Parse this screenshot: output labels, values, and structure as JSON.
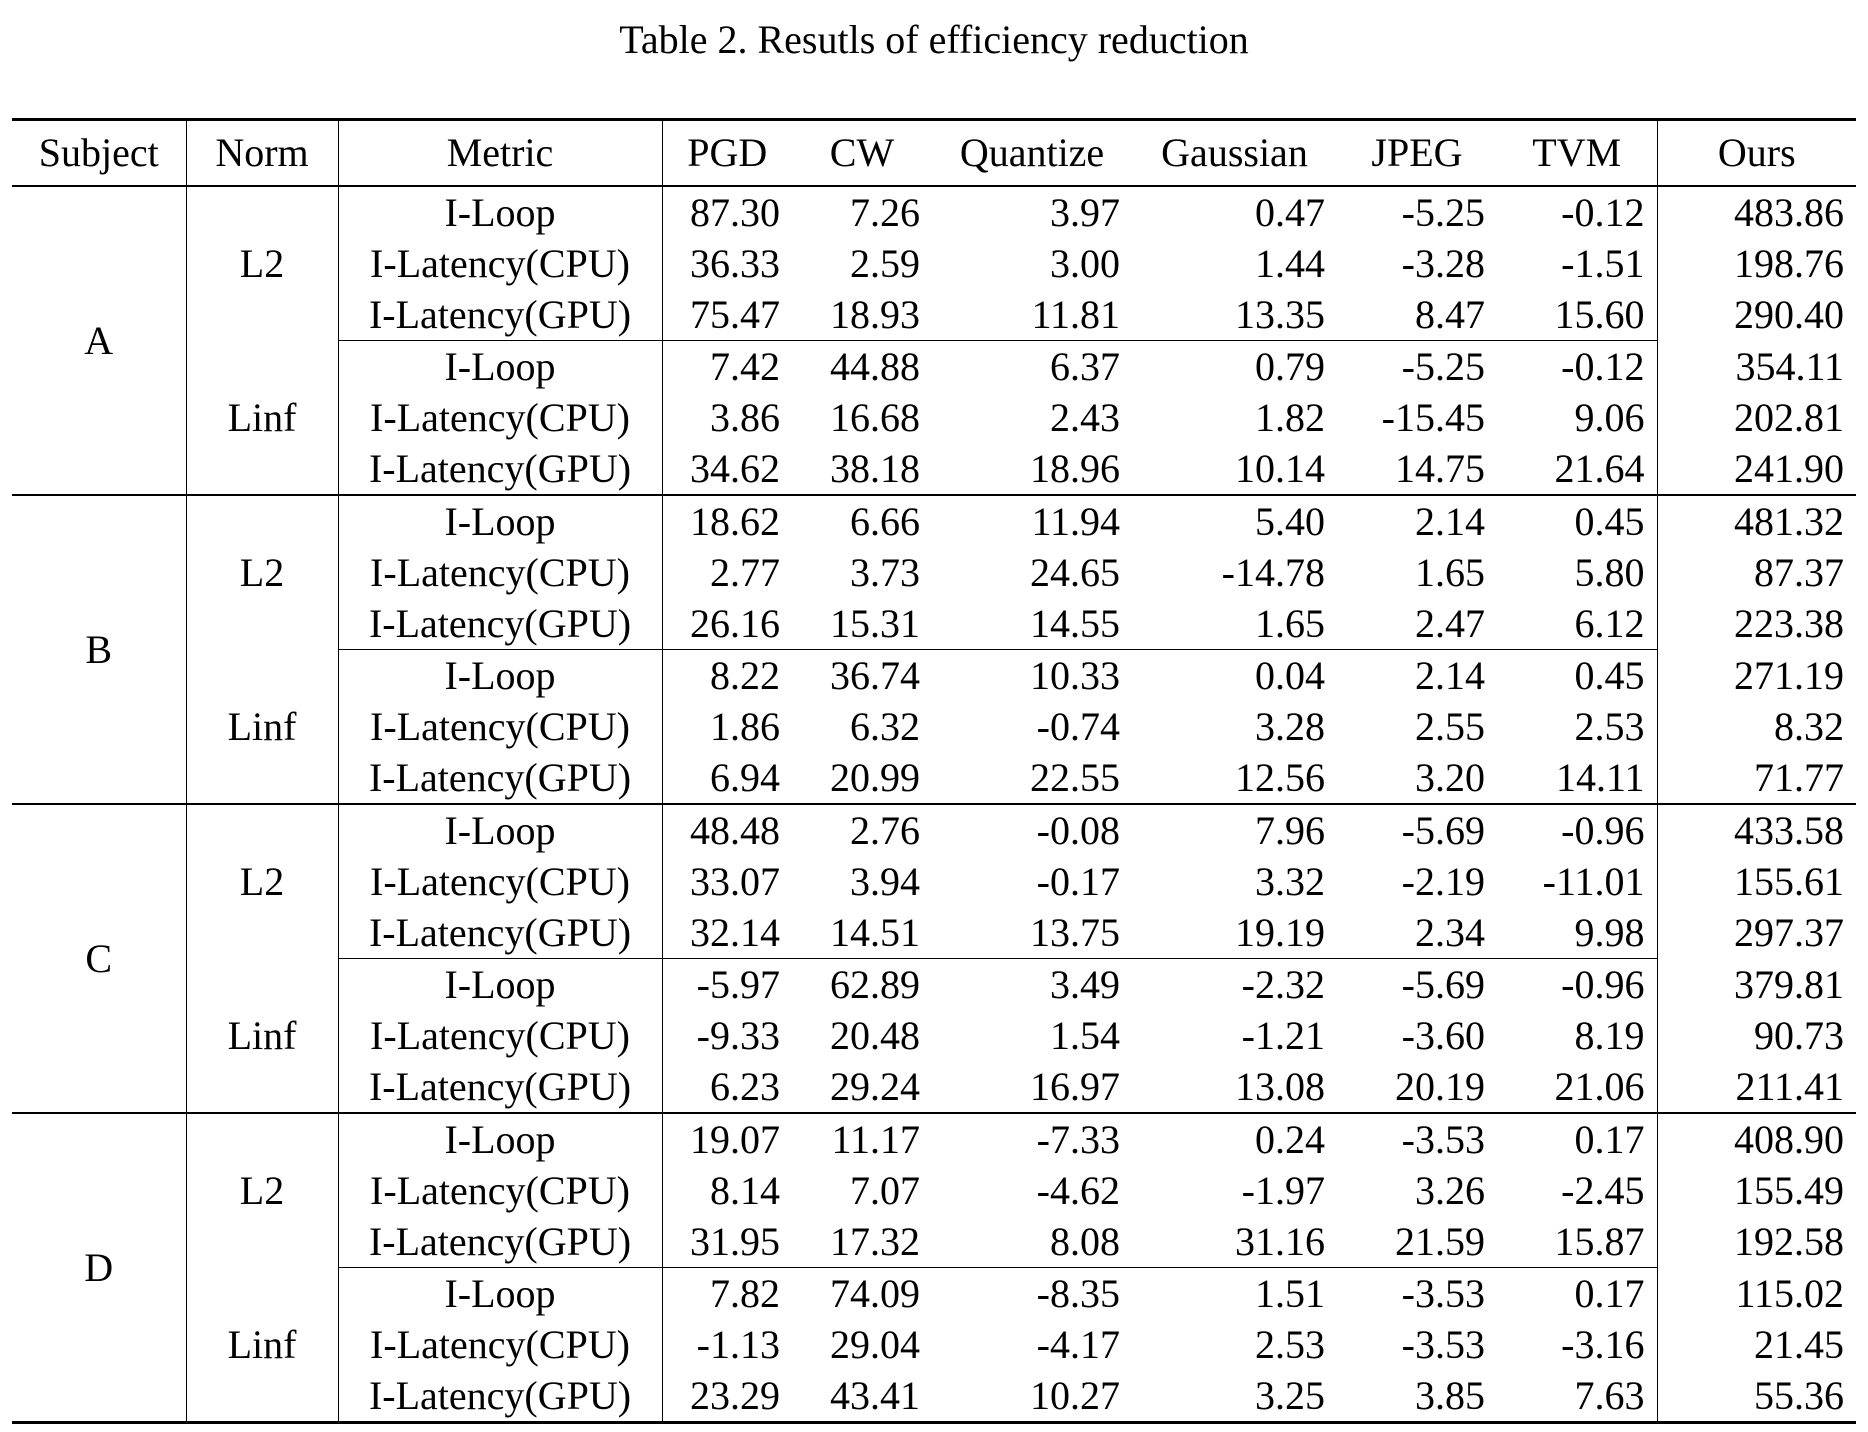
{
  "caption": "Table 2. Resutls of efficiency reduction",
  "headers": {
    "subject": "Subject",
    "norm": "Norm",
    "metric": "Metric",
    "pgd": "PGD",
    "cw": "CW",
    "quantize": "Quantize",
    "gaussian": "Gaussian",
    "jpeg": "JPEG",
    "tvm": "TVM",
    "ours": "Ours"
  },
  "groups": [
    {
      "subject": "A",
      "norms": [
        {
          "norm": "L2",
          "rows": [
            {
              "metric": "I-Loop",
              "pgd": "87.30",
              "cw": "7.26",
              "quantize": "3.97",
              "gaussian": "0.47",
              "jpeg": "-5.25",
              "tvm": "-0.12",
              "ours": "483.86"
            },
            {
              "metric": "I-Latency(CPU)",
              "pgd": "36.33",
              "cw": "2.59",
              "quantize": "3.00",
              "gaussian": "1.44",
              "jpeg": "-3.28",
              "tvm": "-1.51",
              "ours": "198.76"
            },
            {
              "metric": "I-Latency(GPU)",
              "pgd": "75.47",
              "cw": "18.93",
              "quantize": "11.81",
              "gaussian": "13.35",
              "jpeg": "8.47",
              "tvm": "15.60",
              "ours": "290.40"
            }
          ]
        },
        {
          "norm": "Linf",
          "rows": [
            {
              "metric": "I-Loop",
              "pgd": "7.42",
              "cw": "44.88",
              "quantize": "6.37",
              "gaussian": "0.79",
              "jpeg": "-5.25",
              "tvm": "-0.12",
              "ours": "354.11"
            },
            {
              "metric": "I-Latency(CPU)",
              "pgd": "3.86",
              "cw": "16.68",
              "quantize": "2.43",
              "gaussian": "1.82",
              "jpeg": "-15.45",
              "tvm": "9.06",
              "ours": "202.81"
            },
            {
              "metric": "I-Latency(GPU)",
              "pgd": "34.62",
              "cw": "38.18",
              "quantize": "18.96",
              "gaussian": "10.14",
              "jpeg": "14.75",
              "tvm": "21.64",
              "ours": "241.90"
            }
          ]
        }
      ]
    },
    {
      "subject": "B",
      "norms": [
        {
          "norm": "L2",
          "rows": [
            {
              "metric": "I-Loop",
              "pgd": "18.62",
              "cw": "6.66",
              "quantize": "11.94",
              "gaussian": "5.40",
              "jpeg": "2.14",
              "tvm": "0.45",
              "ours": "481.32"
            },
            {
              "metric": "I-Latency(CPU)",
              "pgd": "2.77",
              "cw": "3.73",
              "quantize": "24.65",
              "gaussian": "-14.78",
              "jpeg": "1.65",
              "tvm": "5.80",
              "ours": "87.37"
            },
            {
              "metric": "I-Latency(GPU)",
              "pgd": "26.16",
              "cw": "15.31",
              "quantize": "14.55",
              "gaussian": "1.65",
              "jpeg": "2.47",
              "tvm": "6.12",
              "ours": "223.38"
            }
          ]
        },
        {
          "norm": "Linf",
          "rows": [
            {
              "metric": "I-Loop",
              "pgd": "8.22",
              "cw": "36.74",
              "quantize": "10.33",
              "gaussian": "0.04",
              "jpeg": "2.14",
              "tvm": "0.45",
              "ours": "271.19"
            },
            {
              "metric": "I-Latency(CPU)",
              "pgd": "1.86",
              "cw": "6.32",
              "quantize": "-0.74",
              "gaussian": "3.28",
              "jpeg": "2.55",
              "tvm": "2.53",
              "ours": "8.32"
            },
            {
              "metric": "I-Latency(GPU)",
              "pgd": "6.94",
              "cw": "20.99",
              "quantize": "22.55",
              "gaussian": "12.56",
              "jpeg": "3.20",
              "tvm": "14.11",
              "ours": "71.77"
            }
          ]
        }
      ]
    },
    {
      "subject": "C",
      "norms": [
        {
          "norm": "L2",
          "rows": [
            {
              "metric": "I-Loop",
              "pgd": "48.48",
              "cw": "2.76",
              "quantize": "-0.08",
              "gaussian": "7.96",
              "jpeg": "-5.69",
              "tvm": "-0.96",
              "ours": "433.58"
            },
            {
              "metric": "I-Latency(CPU)",
              "pgd": "33.07",
              "cw": "3.94",
              "quantize": "-0.17",
              "gaussian": "3.32",
              "jpeg": "-2.19",
              "tvm": "-11.01",
              "ours": "155.61"
            },
            {
              "metric": "I-Latency(GPU)",
              "pgd": "32.14",
              "cw": "14.51",
              "quantize": "13.75",
              "gaussian": "19.19",
              "jpeg": "2.34",
              "tvm": "9.98",
              "ours": "297.37"
            }
          ]
        },
        {
          "norm": "Linf",
          "rows": [
            {
              "metric": "I-Loop",
              "pgd": "-5.97",
              "cw": "62.89",
              "quantize": "3.49",
              "gaussian": "-2.32",
              "jpeg": "-5.69",
              "tvm": "-0.96",
              "ours": "379.81"
            },
            {
              "metric": "I-Latency(CPU)",
              "pgd": "-9.33",
              "cw": "20.48",
              "quantize": "1.54",
              "gaussian": "-1.21",
              "jpeg": "-3.60",
              "tvm": "8.19",
              "ours": "90.73"
            },
            {
              "metric": "I-Latency(GPU)",
              "pgd": "6.23",
              "cw": "29.24",
              "quantize": "16.97",
              "gaussian": "13.08",
              "jpeg": "20.19",
              "tvm": "21.06",
              "ours": "211.41"
            }
          ]
        }
      ]
    },
    {
      "subject": "D",
      "norms": [
        {
          "norm": "L2",
          "rows": [
            {
              "metric": "I-Loop",
              "pgd": "19.07",
              "cw": "11.17",
              "quantize": "-7.33",
              "gaussian": "0.24",
              "jpeg": "-3.53",
              "tvm": "0.17",
              "ours": "408.90"
            },
            {
              "metric": "I-Latency(CPU)",
              "pgd": "8.14",
              "cw": "7.07",
              "quantize": "-4.62",
              "gaussian": "-1.97",
              "jpeg": "3.26",
              "tvm": "-2.45",
              "ours": "155.49"
            },
            {
              "metric": "I-Latency(GPU)",
              "pgd": "31.95",
              "cw": "17.32",
              "quantize": "8.08",
              "gaussian": "31.16",
              "jpeg": "21.59",
              "tvm": "15.87",
              "ours": "192.58"
            }
          ]
        },
        {
          "norm": "Linf",
          "rows": [
            {
              "metric": "I-Loop",
              "pgd": "7.82",
              "cw": "74.09",
              "quantize": "-8.35",
              "gaussian": "1.51",
              "jpeg": "-3.53",
              "tvm": "0.17",
              "ours": "115.02"
            },
            {
              "metric": "I-Latency(CPU)",
              "pgd": "-1.13",
              "cw": "29.04",
              "quantize": "-4.17",
              "gaussian": "2.53",
              "jpeg": "-3.53",
              "tvm": "-3.16",
              "ours": "21.45"
            },
            {
              "metric": "I-Latency(GPU)",
              "pgd": "23.29",
              "cw": "43.41",
              "quantize": "10.27",
              "gaussian": "3.25",
              "jpeg": "3.85",
              "tvm": "7.63",
              "ours": "55.36"
            }
          ]
        }
      ]
    }
  ]
}
